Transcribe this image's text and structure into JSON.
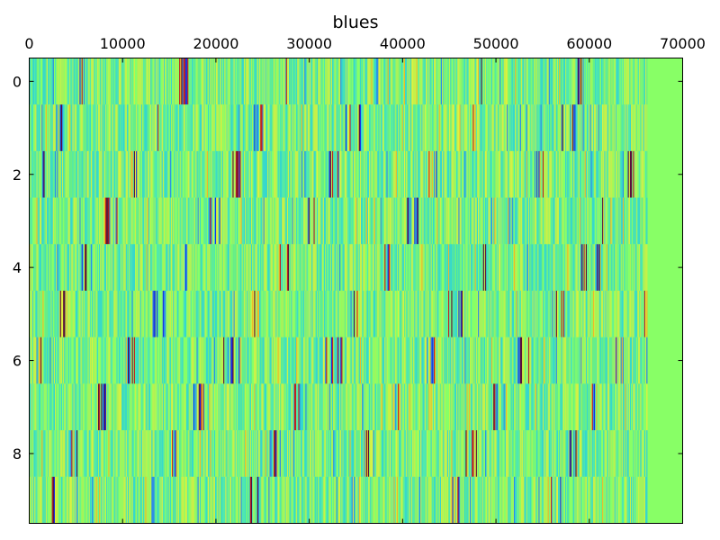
{
  "chart_data": {
    "type": "heatmap",
    "title": "blues",
    "xlabel": "",
    "ylabel": "",
    "x_ticks": [
      0,
      10000,
      20000,
      30000,
      40000,
      50000,
      60000,
      70000
    ],
    "y_ticks": [
      0,
      2,
      4,
      6,
      8
    ],
    "xlim": [
      0,
      70000
    ],
    "ylim": [
      9.5,
      -0.5
    ],
    "rows": 10,
    "columns_with_data": 66150,
    "grid": false,
    "x_axis_position": "top",
    "colors": {
      "background_fill": "#88ff66",
      "palette": [
        "#1a2fe0",
        "#2c8ce8",
        "#33d4d4",
        "#4fe8a8",
        "#7cf27c",
        "#b4f25a",
        "#e0f040",
        "#f0b828",
        "#c02020",
        "#5a0d3a"
      ],
      "dominant_palette": [
        "#66ee88",
        "#88ff66",
        "#a6f25a",
        "#c8f048",
        "#4fe8b0",
        "#36d8cc"
      ]
    },
    "row_hotspots": [
      [
        5600,
        6000,
        16300,
        16700,
        27600,
        37300,
        48300,
        58900,
        59100
      ],
      [
        3300,
        13600,
        24300,
        25000,
        34100,
        35400,
        45500,
        46100,
        47500,
        57200,
        58200,
        60100,
        66400
      ],
      [
        800,
        1400,
        2800,
        10900,
        11400,
        22000,
        22400,
        32300,
        33200,
        34000,
        42900,
        43500,
        54300,
        54800,
        64300,
        64800
      ],
      [
        8200,
        8600,
        9200,
        19500,
        20100,
        30100,
        30700,
        40700,
        41400,
        51300,
        51800,
        61500,
        62200
      ],
      [
        5800,
        16300,
        16600,
        27000,
        27600,
        38300,
        38600,
        48800,
        49200,
        59000,
        59500,
        60600,
        61100
      ],
      [
        3400,
        3900,
        13500,
        14400,
        24100,
        24600,
        34300,
        35000,
        45000,
        45600,
        46100,
        55800,
        56300,
        57200,
        66100
      ],
      [
        1000,
        10500,
        11000,
        21000,
        21600,
        22300,
        31600,
        32300,
        33200,
        42700,
        43200,
        52500,
        53300,
        62900,
        63400
      ],
      [
        7500,
        7900,
        17800,
        18400,
        28300,
        28900,
        39100,
        39600,
        49900,
        50500,
        60100,
        60600
      ],
      [
        4500,
        4900,
        15000,
        15500,
        25800,
        26300,
        36100,
        36800,
        47000,
        47600,
        48400,
        57800,
        58500
      ],
      [
        2600,
        13300,
        13900,
        23900,
        24500,
        34700,
        35300,
        45300,
        45900,
        56100,
        56700,
        66400
      ]
    ]
  }
}
